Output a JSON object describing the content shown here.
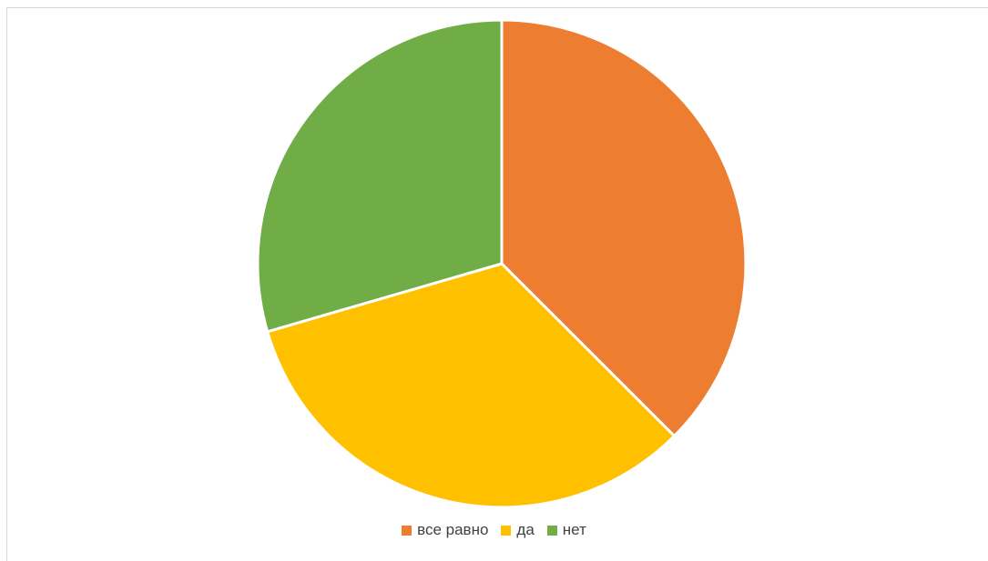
{
  "chart_data": {
    "type": "pie",
    "categories": [
      "все равно",
      "да",
      "нет"
    ],
    "values": [
      37.5,
      33.0,
      29.5
    ],
    "colors": [
      "#ED7D31",
      "#FFC000",
      "#70AD47"
    ],
    "title": "",
    "legend_position": "bottom-center"
  }
}
